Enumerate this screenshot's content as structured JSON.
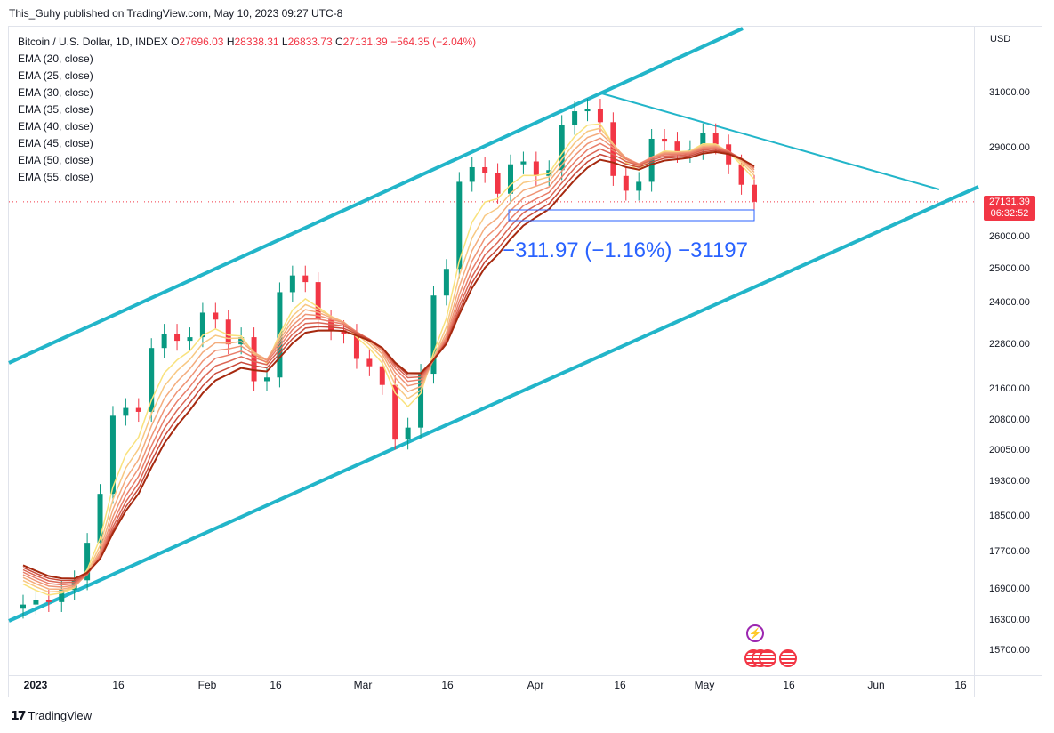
{
  "header": {
    "publisher": "This_Guhy published on TradingView.com, May 10, 2023 09:27 UTC-8"
  },
  "legend": {
    "symbol": "Bitcoin / U.S. Dollar, 1D, INDEX",
    "o_label": "O",
    "o": "27696.03",
    "h_label": "H",
    "h": "28338.31",
    "l_label": "L",
    "l": "26833.73",
    "c_label": "C",
    "c": "27131.39",
    "change": "−564.35 (−2.04%)",
    "emas": [
      "EMA (20, close)",
      "EMA (25, close)",
      "EMA (30, close)",
      "EMA (35, close)",
      "EMA (40, close)",
      "EMA (45, close)",
      "EMA (50, close)",
      "EMA (55, close)"
    ]
  },
  "price_axis": {
    "currency": "USD",
    "last_price": "27131.39",
    "countdown": "06:32:52"
  },
  "measurement": {
    "label": "−311.97 (−1.16%) −31197"
  },
  "footer": {
    "brand": "TradingView"
  },
  "colors": {
    "up": "#089981",
    "down": "#f23645",
    "channel": "#22b5c9",
    "measure": "#2962ff",
    "ema": [
      "#f9e27d",
      "#f8c882",
      "#f4ac7d",
      "#ef9475",
      "#e97e6a",
      "#dc6655",
      "#c94a3b",
      "#a6290f"
    ]
  },
  "chart_data": {
    "type": "candlestick",
    "title": "Bitcoin / U.S. Dollar, 1D, INDEX",
    "y_ticks": [
      "31000.00",
      "29000.00",
      "26000.00",
      "25000.00",
      "24000.00",
      "22800.00",
      "21600.00",
      "20800.00",
      "20050.00",
      "19300.00",
      "18500.00",
      "17700.00",
      "16900.00",
      "16300.00",
      "15700.00"
    ],
    "x_ticks": [
      "2023",
      "16",
      "Feb",
      "16",
      "Mar",
      "16",
      "Apr",
      "16",
      "May",
      "16",
      "Jun",
      "16"
    ],
    "y_scale": "log",
    "last_close": 27131.39,
    "series_sample_closes": [
      16600,
      16700,
      16650,
      16900,
      17100,
      17900,
      19000,
      20900,
      21100,
      21000,
      22700,
      23100,
      22900,
      23000,
      23700,
      23500,
      22800,
      23000,
      21800,
      21900,
      24300,
      24800,
      24600,
      23500,
      23200,
      23100,
      22400,
      22200,
      21700,
      20300,
      20600,
      22000,
      24200,
      25000,
      27800,
      28300,
      28100,
      27400,
      28400,
      28500,
      28000,
      28200,
      29800,
      30300,
      30400,
      29900,
      28000,
      27500,
      27800,
      29300,
      29200,
      28800,
      28900,
      29500,
      29100,
      28400,
      27700,
      27131.39
    ],
    "channel": "ascending parallel channel with descending resistance line"
  }
}
